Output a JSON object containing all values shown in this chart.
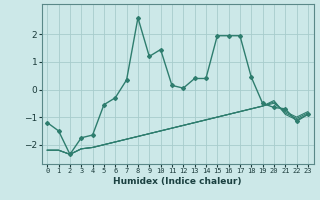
{
  "xlabel": "Humidex (Indice chaleur)",
  "x_values": [
    0,
    1,
    2,
    3,
    4,
    5,
    6,
    7,
    8,
    9,
    10,
    11,
    12,
    13,
    14,
    15,
    16,
    17,
    18,
    19,
    20,
    21,
    22,
    23
  ],
  "main_line": [
    -1.2,
    -1.5,
    -2.35,
    -1.75,
    -1.65,
    -0.55,
    -0.3,
    0.35,
    2.6,
    1.2,
    1.45,
    0.15,
    0.05,
    0.4,
    0.4,
    1.95,
    1.95,
    1.95,
    0.45,
    -0.5,
    -0.65,
    -0.7,
    -1.15,
    -0.9
  ],
  "flat_lines": [
    [
      -2.2,
      -2.2,
      -2.35,
      -2.15,
      -2.1,
      -2.0,
      -1.9,
      -1.8,
      -1.7,
      -1.6,
      -1.5,
      -1.4,
      -1.3,
      -1.2,
      -1.1,
      -1.0,
      -0.9,
      -0.8,
      -0.7,
      -0.6,
      -0.5,
      -0.8,
      -1.0,
      -0.8
    ],
    [
      -2.2,
      -2.2,
      -2.35,
      -2.15,
      -2.1,
      -2.0,
      -1.9,
      -1.8,
      -1.7,
      -1.6,
      -1.5,
      -1.4,
      -1.3,
      -1.2,
      -1.1,
      -1.0,
      -0.9,
      -0.8,
      -0.7,
      -0.6,
      -0.45,
      -0.85,
      -1.05,
      -0.85
    ],
    [
      -2.2,
      -2.2,
      -2.35,
      -2.15,
      -2.1,
      -2.0,
      -1.9,
      -1.8,
      -1.7,
      -1.6,
      -1.5,
      -1.4,
      -1.3,
      -1.2,
      -1.1,
      -1.0,
      -0.9,
      -0.8,
      -0.7,
      -0.6,
      -0.4,
      -0.9,
      -1.1,
      -0.9
    ]
  ],
  "line_color": "#2e7d6e",
  "bg_color": "#cce8e8",
  "grid_color": "#a8cccc",
  "ylim": [
    -2.7,
    3.1
  ],
  "yticks": [
    -2,
    -1,
    0,
    1,
    2
  ],
  "xtick_labels": [
    "0",
    "1",
    "2",
    "3",
    "4",
    "5",
    "6",
    "7",
    "8",
    "9",
    "10",
    "11",
    "12",
    "13",
    "14",
    "15",
    "16",
    "17",
    "18",
    "19",
    "20",
    "21",
    "22",
    "23"
  ]
}
